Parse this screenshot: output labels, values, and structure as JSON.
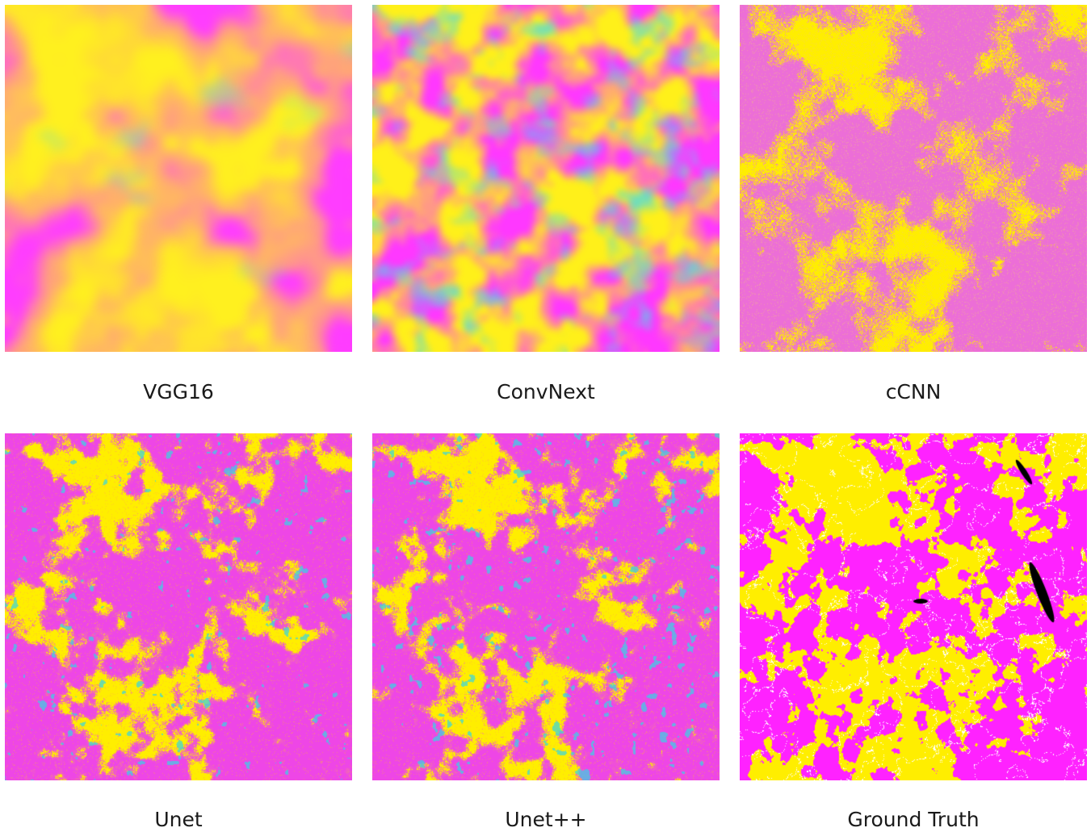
{
  "palette": {
    "magenta": "#ff22ff",
    "yellow": "#ffee00",
    "cyan": "#33d6e6",
    "orange": "#ffb040",
    "black": "#000000"
  },
  "panels": [
    {
      "caption": "VGG16"
    },
    {
      "caption": "ConvNext"
    },
    {
      "caption": "cCNN"
    },
    {
      "caption": "Unet"
    },
    {
      "caption": "Unet++"
    },
    {
      "caption": "Ground Truth"
    }
  ]
}
